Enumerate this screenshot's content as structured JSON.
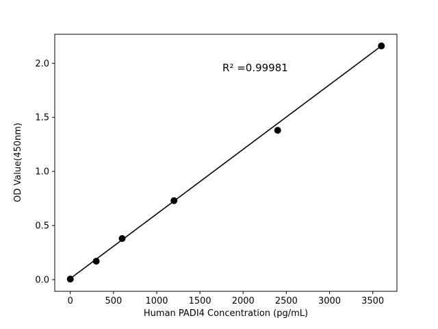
{
  "chart_data": {
    "type": "scatter",
    "title": "",
    "xlabel": "Human PADI4 Concentration (pg/mL)",
    "ylabel": "OD Value(450nm)",
    "annotation": "R² =0.99981",
    "x": [
      0,
      300,
      600,
      1200,
      2400,
      3600
    ],
    "y": [
      0.005,
      0.17,
      0.38,
      0.73,
      1.38,
      2.16
    ],
    "fit_line": {
      "from": [
        0,
        0.01
      ],
      "to": [
        3600,
        2.16
      ]
    },
    "xlim": [
      -180,
      3780
    ],
    "ylim": [
      -0.108,
      2.268
    ],
    "x_ticks": [
      0,
      500,
      1000,
      1500,
      2000,
      2500,
      3000,
      3500
    ],
    "x_tick_labels": [
      "0",
      "500",
      "1000",
      "1500",
      "2000",
      "2500",
      "3000",
      "3500"
    ],
    "y_ticks": [
      0.0,
      0.5,
      1.0,
      1.5,
      2.0
    ],
    "y_tick_labels": [
      "0.0",
      "0.5",
      "1.0",
      "1.5",
      "2.0"
    ],
    "point_color": "#000000",
    "line_color": "#000000",
    "frame_color": "#000000",
    "background_color": "#ffffff",
    "grid": "off",
    "legend": "none"
  }
}
